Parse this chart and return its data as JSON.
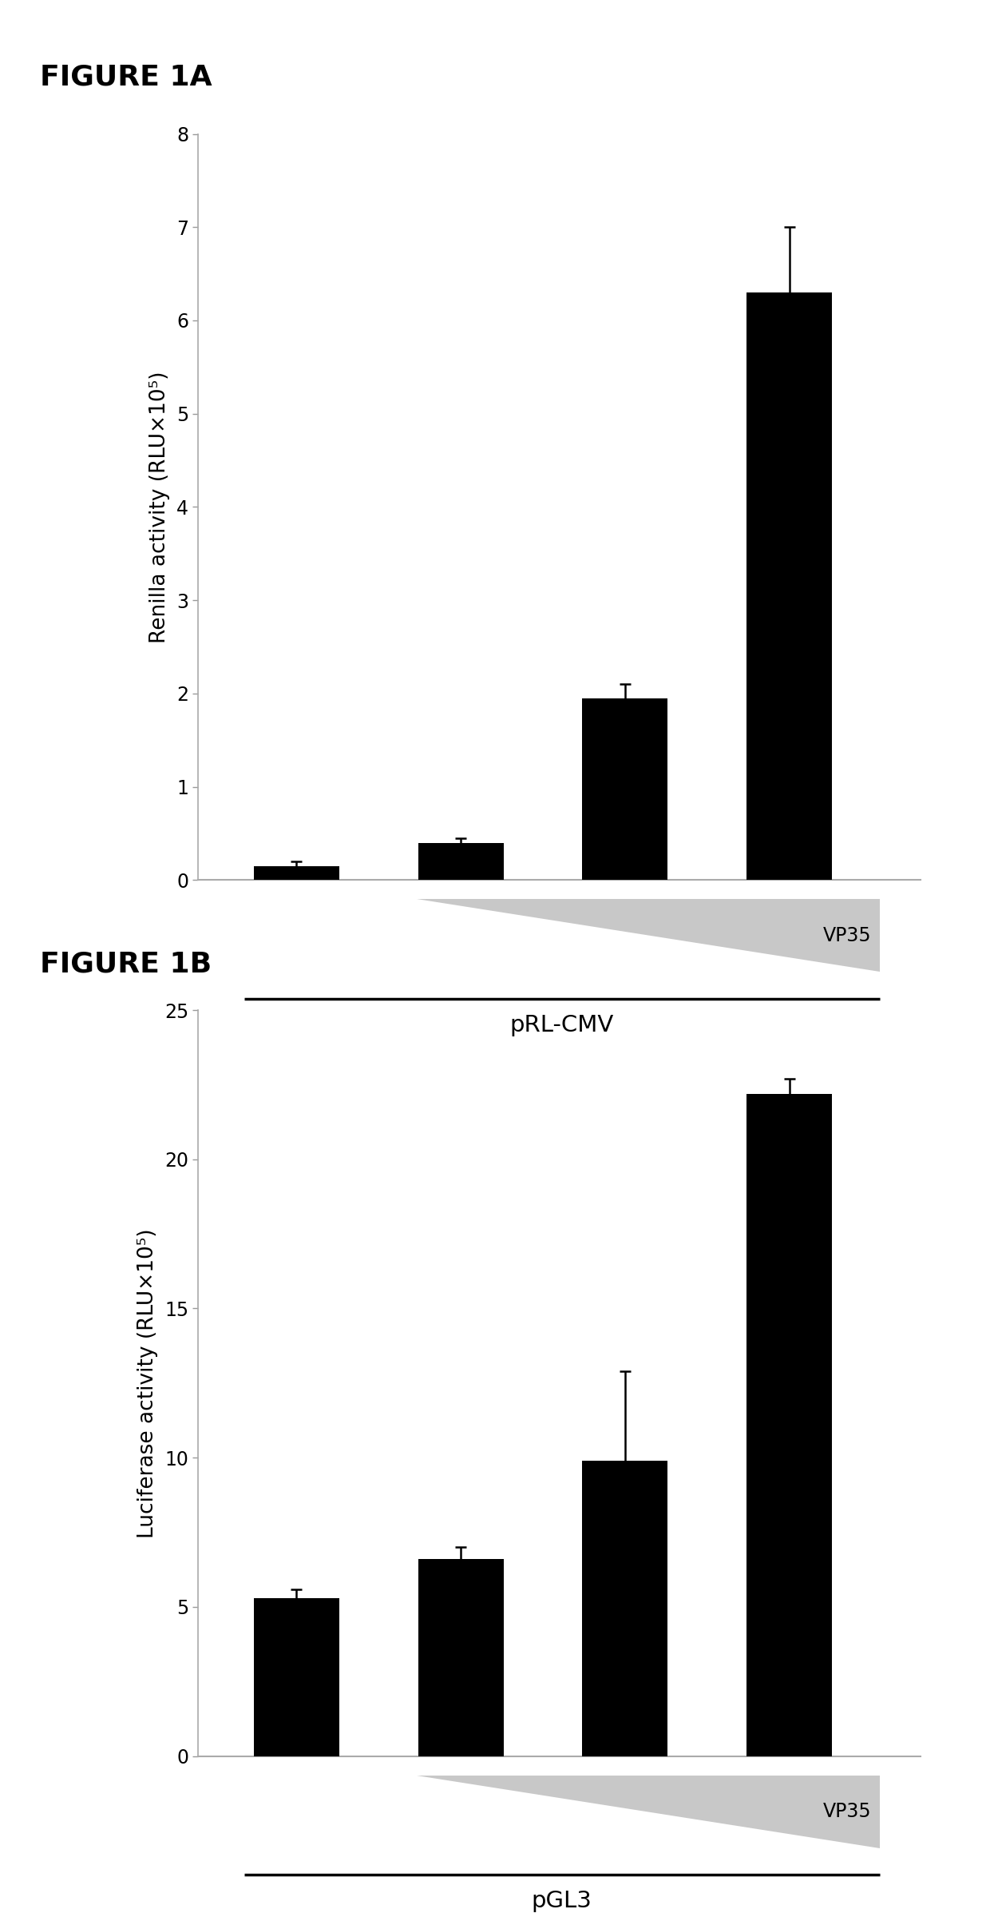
{
  "fig1a": {
    "title": "FIGURE 1A",
    "ylabel": "Renilla activity (RLU×10⁵)",
    "bar_values": [
      0.15,
      0.4,
      1.95,
      6.3
    ],
    "bar_errors": [
      0.05,
      0.05,
      0.15,
      0.7
    ],
    "ylim": [
      0,
      8
    ],
    "yticks": [
      0,
      1,
      2,
      3,
      4,
      5,
      6,
      7,
      8
    ],
    "bar_color": "#000000",
    "xlabel_main": "pRL-CMV",
    "vp35_label": "VP35",
    "tri_x_start_data": 1.73,
    "tri_x_end_data": 4.55,
    "line_x_start_data": 0.68,
    "line_x_end_data": 4.55
  },
  "fig1b": {
    "title": "FIGURE 1B",
    "ylabel": "Luciferase activity (RLU×10⁵)",
    "bar_values": [
      5.3,
      6.6,
      9.9,
      22.2
    ],
    "bar_errors": [
      0.3,
      0.4,
      3.0,
      0.5
    ],
    "ylim": [
      0,
      25
    ],
    "yticks": [
      0,
      5,
      10,
      15,
      20,
      25
    ],
    "bar_color": "#000000",
    "xlabel_main": "pGL3",
    "vp35_label": "VP35",
    "tri_x_start_data": 1.73,
    "tri_x_end_data": 4.55,
    "line_x_start_data": 0.68,
    "line_x_end_data": 4.55
  },
  "background_color": "#ffffff",
  "bar_width": 0.52,
  "bar_positions": [
    1,
    2,
    3,
    4
  ],
  "xlim": [
    0.4,
    4.8
  ],
  "title_fontsize": 26,
  "label_fontsize": 19,
  "tick_fontsize": 17,
  "xlabel_fontsize": 21,
  "vp35_fontsize": 17
}
